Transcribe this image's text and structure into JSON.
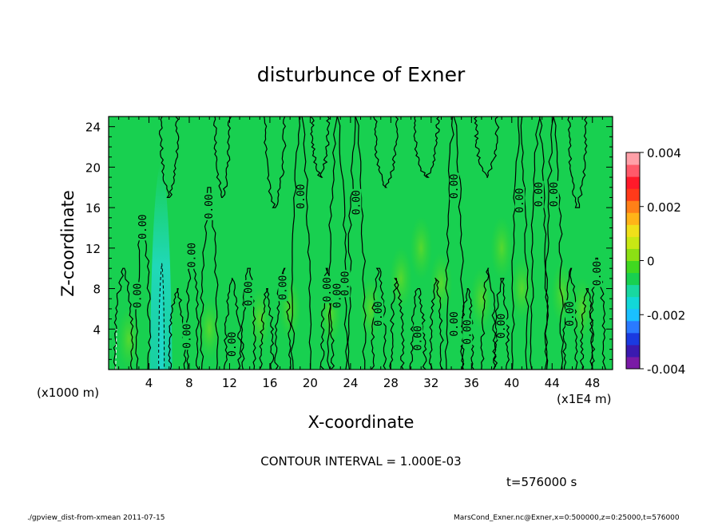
{
  "chart_data": {
    "type": "heatmap",
    "title": "disturbunce of Exner",
    "xlabel": "X-coordinate",
    "ylabel": "Z-coordinate",
    "x_unit": "(x1E4 m)",
    "y_unit": "(x1000 m)",
    "xlim": [
      0,
      50
    ],
    "ylim": [
      0,
      25
    ],
    "x_ticks": [
      4,
      8,
      12,
      16,
      20,
      24,
      28,
      32,
      36,
      40,
      44,
      48
    ],
    "y_ticks": [
      4,
      8,
      12,
      16,
      20,
      24
    ],
    "x_tick_labels": [
      "4",
      "8",
      "12",
      "16",
      "20",
      "24",
      "28",
      "32",
      "36",
      "40",
      "44",
      "48"
    ],
    "y_tick_labels": [
      "4",
      "8",
      "12",
      "16",
      "20",
      "24"
    ],
    "colorbar": {
      "range": [
        -0.004,
        0.004
      ],
      "tick_labels": [
        "0.004",
        "0.002",
        "0",
        "-0.002",
        "-0.004"
      ],
      "tick_values": [
        0.004,
        0.002,
        0,
        -0.002,
        -0.004
      ],
      "colors": [
        "#7a1aa6",
        "#3a1ab0",
        "#1a3ae0",
        "#2a7aff",
        "#1ac0ff",
        "#12d8d8",
        "#18d8a0",
        "#18d050",
        "#40d820",
        "#8ce014",
        "#c8e814",
        "#f0e01a",
        "#ffb418",
        "#ff8018",
        "#ff3a1a",
        "#ff1a2a",
        "#ff5a6a",
        "#ffa0a8"
      ]
    },
    "background_value": 0,
    "contour_interval": "CONTOUR INTERVAL = 1.000E-03",
    "contour_labels": [
      {
        "x": 3.4,
        "z": 14.1,
        "text": "0.00"
      },
      {
        "x": 2.9,
        "z": 7.3,
        "text": "0.00"
      },
      {
        "x": 7.8,
        "z": 3.3,
        "text": "0.00"
      },
      {
        "x": 8.3,
        "z": 11.3,
        "text": "0.00"
      },
      {
        "x": 10.0,
        "z": 16.1,
        "text": "0.00"
      },
      {
        "x": 12.3,
        "z": 2.5,
        "text": "0.00"
      },
      {
        "x": 13.9,
        "z": 7.5,
        "text": "0.00"
      },
      {
        "x": 17.3,
        "z": 8.1,
        "text": "0.00"
      },
      {
        "x": 19.1,
        "z": 17.1,
        "text": "0.00"
      },
      {
        "x": 21.7,
        "z": 7.9,
        "text": "0.00"
      },
      {
        "x": 22.7,
        "z": 7.3,
        "text": "0.00"
      },
      {
        "x": 23.5,
        "z": 8.5,
        "text": "0.00"
      },
      {
        "x": 24.6,
        "z": 16.5,
        "text": "0.00"
      },
      {
        "x": 26.8,
        "z": 5.5,
        "text": "0.00"
      },
      {
        "x": 30.7,
        "z": 3.1,
        "text": "0.00"
      },
      {
        "x": 34.3,
        "z": 18.1,
        "text": "0.00"
      },
      {
        "x": 34.3,
        "z": 4.5,
        "text": "0.00"
      },
      {
        "x": 35.6,
        "z": 3.7,
        "text": "0.00"
      },
      {
        "x": 39.0,
        "z": 4.3,
        "text": "0.00"
      },
      {
        "x": 40.8,
        "z": 16.7,
        "text": "0.00"
      },
      {
        "x": 42.7,
        "z": 17.3,
        "text": "0.00"
      },
      {
        "x": 44.2,
        "z": 17.3,
        "text": "0.00"
      },
      {
        "x": 45.8,
        "z": 5.5,
        "text": "0.00"
      },
      {
        "x": 48.5,
        "z": 9.5,
        "text": "0.00"
      }
    ],
    "negative_region": {
      "x": 5.2,
      "z_top": 20.5,
      "min_value": -0.0015
    }
  },
  "annotations": {
    "time": "t=576000 s",
    "footer_left": "./gpview_dist-from-xmean  2011-07-15",
    "footer_right": "MarsCond_Exner.nc@Exner,x=0:500000,z=0:25000,t=576000"
  }
}
